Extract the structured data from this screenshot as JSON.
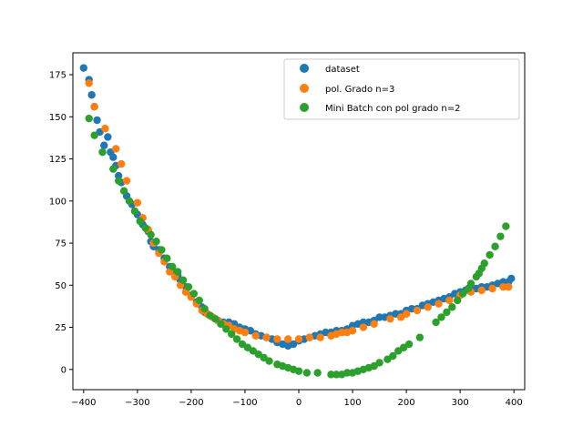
{
  "chart_data": {
    "type": "scatter",
    "title": "",
    "xlabel": "",
    "ylabel": "",
    "xlim": [
      -420,
      420
    ],
    "ylim": [
      -12,
      188
    ],
    "xticks": [
      -400,
      -300,
      -200,
      -100,
      0,
      100,
      200,
      300,
      400
    ],
    "yticks": [
      0,
      25,
      50,
      75,
      100,
      125,
      150,
      175
    ],
    "grid": false,
    "legend_position": "top-right",
    "series": [
      {
        "name": "dataset",
        "color": "#1f77b4",
        "x": [
          -400,
          -390,
          -385,
          -380,
          -375,
          -370,
          -362,
          -355,
          -350,
          -345,
          -340,
          -335,
          -330,
          -320,
          -310,
          -300,
          -295,
          -290,
          -280,
          -275,
          -270,
          -260,
          -250,
          -240,
          -230,
          -225,
          -220,
          -210,
          -200,
          -190,
          -180,
          -175,
          -170,
          -160,
          -150,
          -140,
          -130,
          -120,
          -110,
          -100,
          -90,
          -80,
          -70,
          -60,
          -50,
          -40,
          -30,
          -20,
          -10,
          0,
          10,
          20,
          30,
          40,
          50,
          60,
          70,
          80,
          90,
          100,
          110,
          120,
          130,
          140,
          150,
          160,
          170,
          180,
          190,
          200,
          210,
          220,
          230,
          240,
          250,
          260,
          270,
          280,
          290,
          300,
          310,
          320,
          330,
          340,
          350,
          360,
          370,
          380,
          390,
          395
        ],
        "y": [
          179,
          172,
          163,
          156,
          148,
          141,
          133,
          138,
          129,
          126,
          121,
          115,
          111,
          103,
          98,
          92,
          88,
          86,
          82,
          76,
          73,
          71,
          66,
          61,
          57,
          56,
          53,
          49,
          44,
          40,
          37,
          34,
          33,
          31,
          29,
          28,
          28,
          27,
          25,
          24,
          23,
          21,
          20,
          19,
          18,
          16,
          15,
          14,
          15,
          17,
          18,
          19,
          20,
          21,
          22,
          22,
          23,
          23,
          24,
          26,
          27,
          28,
          28,
          29,
          31,
          31,
          32,
          33,
          33,
          35,
          36,
          36,
          38,
          39,
          40,
          41,
          42,
          43,
          45,
          46,
          47,
          48,
          48,
          49,
          49,
          50,
          51,
          52,
          52,
          54
        ]
      },
      {
        "name": "pol. Grado n=3",
        "color": "#ff7f0e",
        "x": [
          -390,
          -380,
          -360,
          -340,
          -330,
          -320,
          -300,
          -290,
          -280,
          -270,
          -260,
          -250,
          -240,
          -230,
          -220,
          -210,
          -200,
          -190,
          -180,
          -170,
          -160,
          -150,
          -140,
          -130,
          -120,
          -110,
          -100,
          -80,
          -60,
          -40,
          -20,
          0,
          20,
          40,
          60,
          70,
          80,
          90,
          100,
          120,
          140,
          170,
          190,
          200,
          220,
          240,
          260,
          280,
          300,
          320,
          340,
          360,
          380,
          390
        ],
        "y": [
          170,
          156,
          143,
          131,
          122,
          112,
          99,
          90,
          83,
          75,
          69,
          64,
          58,
          55,
          50,
          46,
          43,
          39,
          35,
          33,
          31,
          29,
          27,
          26,
          24,
          23,
          22,
          20,
          19,
          18,
          18,
          18,
          19,
          19,
          20,
          21,
          22,
          22,
          23,
          25,
          27,
          30,
          31,
          33,
          35,
          37,
          39,
          41,
          44,
          46,
          47,
          48,
          49,
          49
        ]
      },
      {
        "name": "Mini Batch con pol grado n=2",
        "color": "#2ca02c",
        "x": [
          -390,
          -380,
          -365,
          -345,
          -335,
          -325,
          -315,
          -305,
          -295,
          -285,
          -275,
          -265,
          -255,
          -245,
          -235,
          -225,
          -215,
          -205,
          -195,
          -185,
          -175,
          -165,
          -155,
          -145,
          -135,
          -125,
          -115,
          -105,
          -95,
          -85,
          -75,
          -65,
          -55,
          -40,
          -30,
          -20,
          -10,
          0,
          15,
          35,
          60,
          70,
          80,
          90,
          100,
          110,
          120,
          130,
          140,
          150,
          165,
          175,
          185,
          195,
          205,
          225,
          255,
          265,
          275,
          285,
          295,
          305,
          315,
          320,
          330,
          335,
          340,
          345,
          355,
          365,
          375,
          385
        ],
        "y": [
          149,
          139,
          129,
          119,
          112,
          106,
          100,
          94,
          88,
          84,
          80,
          76,
          71,
          66,
          61,
          58,
          53,
          49,
          45,
          41,
          36,
          32,
          30,
          27,
          24,
          21,
          18,
          15,
          13,
          11,
          9,
          7,
          5,
          3,
          2,
          1,
          0,
          -1,
          -2,
          -2,
          -3,
          -3,
          -3,
          -2,
          -2,
          -1,
          0,
          1,
          2,
          4,
          6,
          8,
          11,
          13,
          15,
          19,
          28,
          31,
          34,
          37,
          41,
          45,
          48,
          51,
          55,
          57,
          60,
          63,
          68,
          73,
          79,
          85
        ]
      }
    ]
  }
}
